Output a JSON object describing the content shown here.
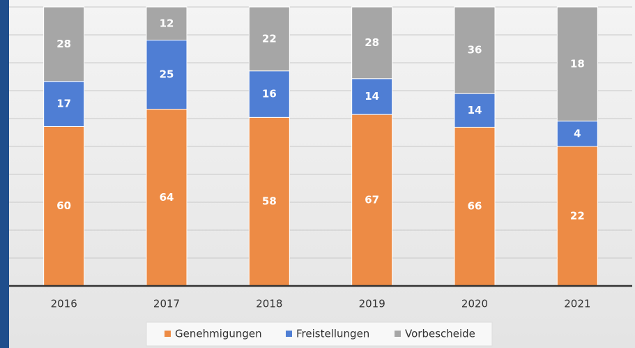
{
  "chart_data": {
    "type": "bar",
    "stack": "percent",
    "categories": [
      "2016",
      "2017",
      "2018",
      "2019",
      "2020",
      "2021"
    ],
    "series": [
      {
        "name": "Genehmigungen",
        "color": "#ed8b45",
        "values": [
          60,
          64,
          58,
          67,
          66,
          22
        ]
      },
      {
        "name": "Freistellungen",
        "color": "#4f7ed4",
        "values": [
          17,
          25,
          16,
          14,
          14,
          4
        ]
      },
      {
        "name": "Vorbescheide",
        "color": "#a6a6a6",
        "values": [
          28,
          12,
          22,
          28,
          36,
          18
        ]
      }
    ],
    "ylim": [
      0,
      100
    ],
    "yticks": [
      0,
      10,
      20,
      30,
      40,
      50,
      60,
      70,
      80,
      90,
      100
    ],
    "grid": true,
    "legend": "bottom"
  }
}
